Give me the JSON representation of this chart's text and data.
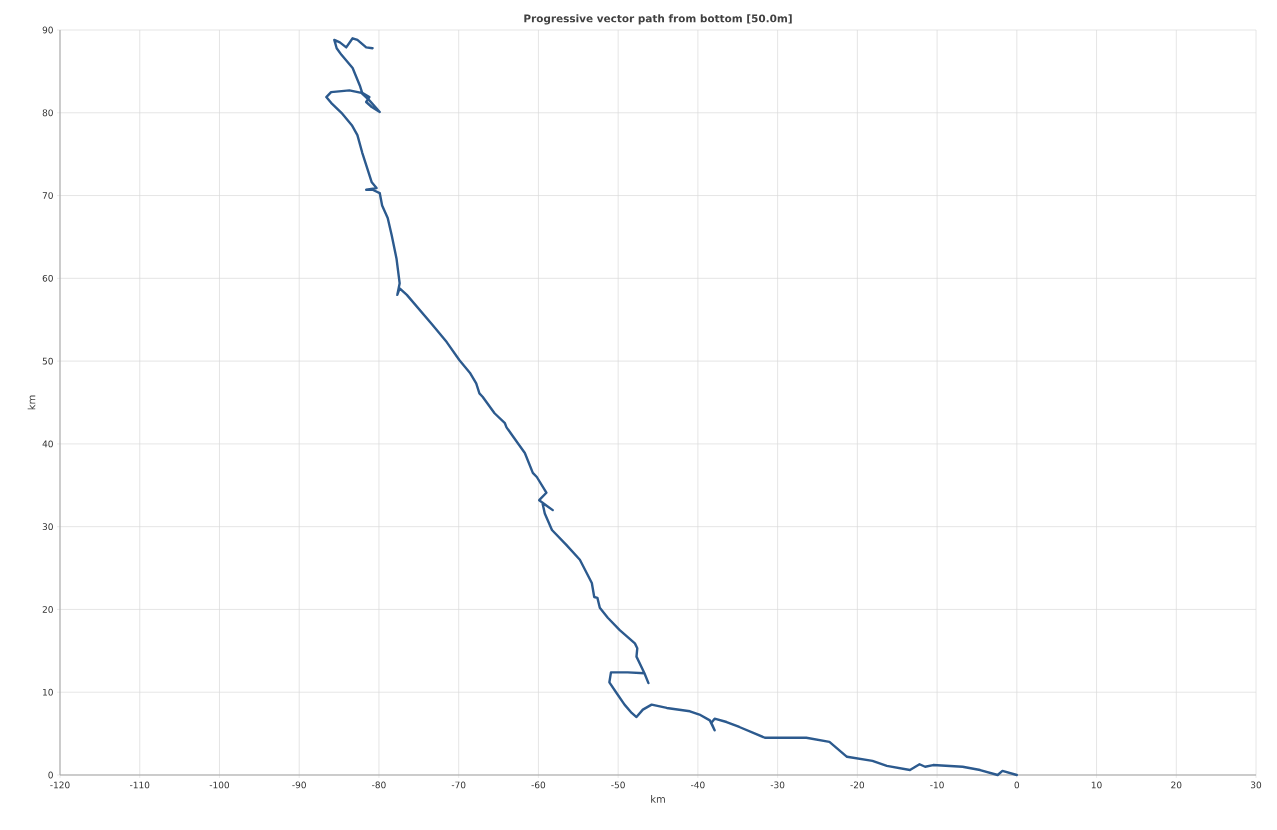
{
  "chart_data": {
    "type": "line",
    "title": "Progressive vector path from bottom [50.0m]",
    "xlabel": "km",
    "ylabel": "km",
    "xlim": [
      -120,
      30
    ],
    "xticks": [
      -120,
      -110,
      -100,
      -90,
      -80,
      -70,
      -60,
      -50,
      -40,
      -30,
      -20,
      -10,
      0,
      10,
      20,
      30
    ],
    "ylim": [
      0,
      90
    ],
    "yticks": [
      0,
      10,
      20,
      30,
      40,
      50,
      60,
      70,
      80,
      90
    ],
    "grid": true,
    "marker": "none",
    "line_style": "solid",
    "series": [
      {
        "color": "#2c5a8e",
        "x": [
          0,
          -1.8,
          -2.4,
          -4.6,
          -6.8,
          -10.5,
          -11.5,
          -12.2,
          -13.4,
          -16.3,
          -18.1,
          -21.3,
          -23.5,
          -26.4,
          -29.7,
          -31.6,
          -34.8,
          -36.4,
          -37.9,
          -38.3,
          -37.9,
          -38.5,
          -39.8,
          -41.0,
          -43.9,
          -45.8,
          -46.9,
          -47.7,
          -48.3,
          -49.2,
          -50.2,
          -51.1,
          -50.9,
          -48.8,
          -46.7,
          -46.2,
          -46.7,
          -47.7,
          -47.6,
          -47.9,
          -49.8,
          -51.3,
          -52.3,
          -52.6,
          -53.0,
          -53.3,
          -54.8,
          -56.5,
          -58.3,
          -59.2,
          -59.5,
          -58.2,
          -59.9,
          -59.0,
          -60.2,
          -60.7,
          -61.7,
          -62.6,
          -64.0,
          -64.2,
          -65.5,
          -67.0,
          -67.4,
          -67.8,
          -68.6,
          -69.9,
          -71.5,
          -73.3,
          -74.9,
          -76.5,
          -77.4,
          -77.7,
          -77.4,
          -77.8,
          -78.4,
          -78.9,
          -79.6,
          -79.9,
          -80.8,
          -81.6,
          -80.3,
          -80.9,
          -82.1,
          -82.7,
          -83.4,
          -84.7,
          -86.0,
          -86.6,
          -86.0,
          -83.7,
          -82.2,
          -81.2,
          -79.9,
          -80.9,
          -81.6,
          -81.2,
          -82.1,
          -82.4,
          -83.3,
          -84.7,
          -85.3,
          -85.6,
          -84.9,
          -84.1,
          -83.3,
          -82.7,
          -81.6,
          -80.8
        ],
        "values": [
          0,
          0.5,
          0,
          0.6,
          1.0,
          1.2,
          1.0,
          1.3,
          0.6,
          1.1,
          1.7,
          2.2,
          4.0,
          4.5,
          4.5,
          4.5,
          5.8,
          6.4,
          6.8,
          6.3,
          5.4,
          6.6,
          7.3,
          7.7,
          8.1,
          8.5,
          7.9,
          7.0,
          7.5,
          8.5,
          9.9,
          11.2,
          12.4,
          12.4,
          12.3,
          11.1,
          12.3,
          14.3,
          15.3,
          15.9,
          17.5,
          19.0,
          20.2,
          21.4,
          21.5,
          23.2,
          26.0,
          27.8,
          29.6,
          31.6,
          32.9,
          32.0,
          33.2,
          34.1,
          36.0,
          36.5,
          38.9,
          40.1,
          42.0,
          42.5,
          43.7,
          45.7,
          46.1,
          47.3,
          48.6,
          50.1,
          52.3,
          54.4,
          56.2,
          58.0,
          58.8,
          58.0,
          59.4,
          62.4,
          65.2,
          67.3,
          68.8,
          70.3,
          70.7,
          70.7,
          70.9,
          71.6,
          75.2,
          77.3,
          78.5,
          80.0,
          81.2,
          81.9,
          82.5,
          82.7,
          82.4,
          81.5,
          80.1,
          80.7,
          81.3,
          81.9,
          82.4,
          83.3,
          85.4,
          87.0,
          87.8,
          88.8,
          88.5,
          87.9,
          89.0,
          88.8,
          87.9,
          87.8
        ]
      }
    ]
  }
}
